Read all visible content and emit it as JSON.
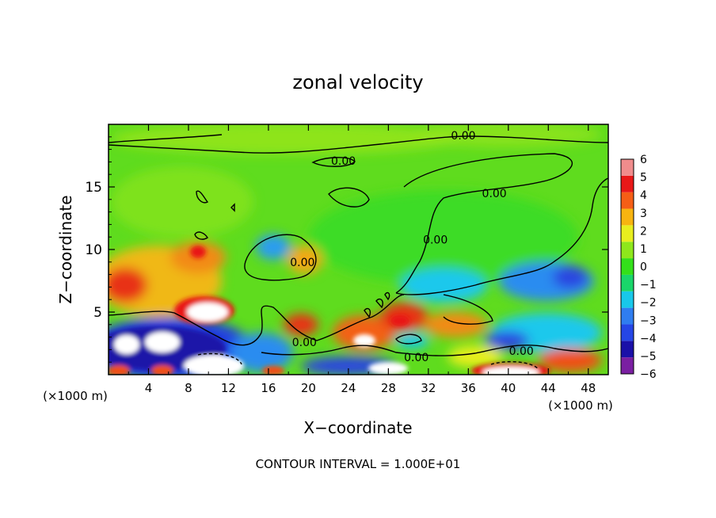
{
  "chart_data": {
    "type": "heatmap",
    "title": "zonal velocity",
    "xlabel": "X−coordinate",
    "ylabel": "Z−coordinate",
    "x_unit_left": "(×1000 m)",
    "x_unit_right": "(×1000 m)",
    "xlim": [
      0,
      50
    ],
    "ylim": [
      0,
      20
    ],
    "x_ticks": [
      "4",
      "8",
      "12",
      "16",
      "20",
      "24",
      "28",
      "32",
      "36",
      "40",
      "44",
      "48"
    ],
    "y_ticks": [
      "5",
      "10",
      "15"
    ],
    "colorbar": {
      "ticks": [
        "6",
        "5",
        "4",
        "3",
        "2",
        "1",
        "0",
        "−1",
        "−2",
        "−3",
        "−4",
        "−5",
        "−6"
      ],
      "levels": [
        -6,
        -5,
        -4,
        -3,
        -2,
        -1,
        0,
        1,
        2,
        3,
        4,
        5,
        6
      ],
      "colors": [
        "#7a1fa2",
        "#1a10a8",
        "#2546e6",
        "#2f7df0",
        "#18c8ea",
        "#19d66a",
        "#33e01a",
        "#8ee81c",
        "#e8ee1e",
        "#f7b410",
        "#f55e16",
        "#e81818",
        "#f08c8c"
      ]
    },
    "contour_label": "0.00",
    "contour_labels": [
      {
        "x": 23.5,
        "z": 17.1,
        "text": "0.00"
      },
      {
        "x": 35.5,
        "z": 19.1,
        "text": "0.00"
      },
      {
        "x": 38.6,
        "z": 14.5,
        "text": "0.00"
      },
      {
        "x": 19.4,
        "z": 9.0,
        "text": "0.00"
      },
      {
        "x": 32.7,
        "z": 10.8,
        "text": "0.00"
      },
      {
        "x": 19.6,
        "z": 2.6,
        "text": "0.00"
      },
      {
        "x": 30.8,
        "z": 1.4,
        "text": "0.00"
      },
      {
        "x": 41.3,
        "z": 1.9,
        "text": "0.00"
      }
    ],
    "footnote": "CONTOUR INTERVAL = 1.000E+01"
  }
}
